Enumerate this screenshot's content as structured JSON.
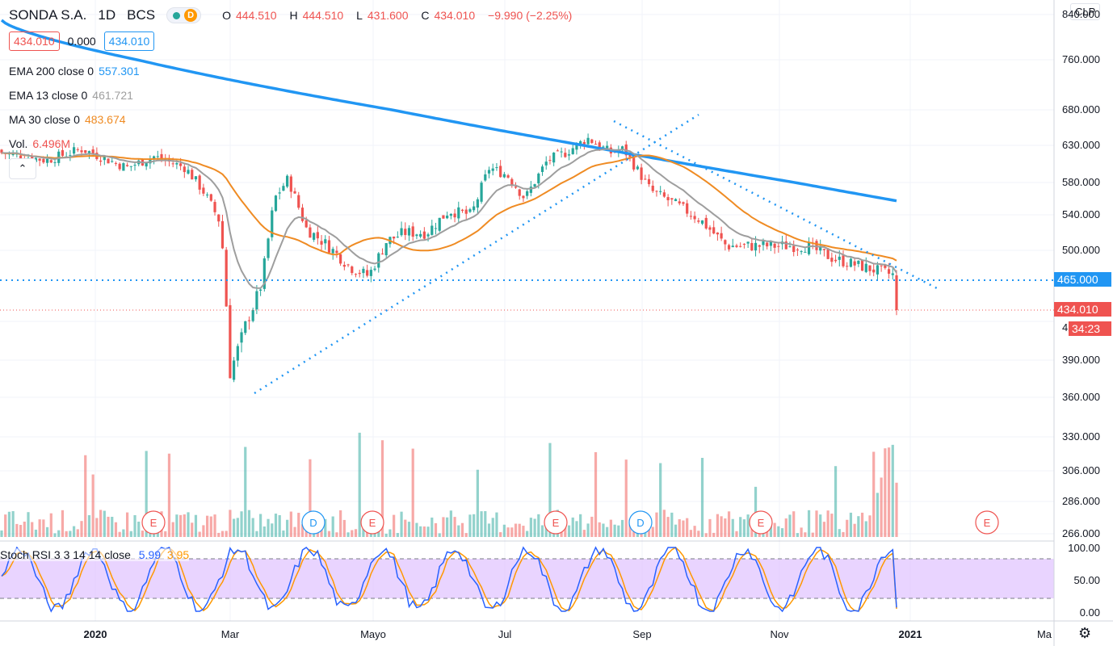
{
  "header": {
    "symbol": "SONDA S.A.",
    "timeframe": "1D",
    "exchange": "BCS",
    "d_badge": "D",
    "ohlc": {
      "o_key": "O",
      "o": "444.510",
      "h_key": "H",
      "h": "444.510",
      "l_key": "L",
      "l": "431.600",
      "c_key": "C",
      "c": "434.010",
      "change": "−9.990 (−2.25%)"
    }
  },
  "price_row": {
    "bid": "434.010",
    "spread": "0.000",
    "ask": "434.010"
  },
  "indicators": {
    "ema200": {
      "label": "EMA 200 close 0",
      "value": "557.301",
      "color": "#2196f3"
    },
    "ema13": {
      "label": "EMA 13 close 0",
      "value": "461.721",
      "color": "#9e9e9e"
    },
    "ma30": {
      "label": "MA 30 close 0",
      "value": "483.674",
      "color": "#ef8b23"
    },
    "vol": {
      "label": "Vol.",
      "value": "6.496M",
      "color": "#ef5350"
    },
    "stoch": {
      "label": "Stoch RSI 3 3 14 14 close",
      "k": "5.99",
      "d": "3.95",
      "k_color": "#2962ff",
      "d_color": "#ff9800"
    }
  },
  "currency": "CLP",
  "collapse_icon": "chevron-up-icon",
  "settings_icon": "gear-icon",
  "price_axis": [
    "840.000",
    "760.000",
    "680.000",
    "630.000",
    "580.000",
    "540.000",
    "500.000",
    "465.000",
    "434.010",
    "420.000",
    "390.000",
    "360.000",
    "330.000",
    "306.000",
    "286.000",
    "266.000"
  ],
  "tags": {
    "level": "465.000",
    "last": "434.010",
    "countdown": "34:23"
  },
  "stoch_axis": [
    "100.00",
    "50.00",
    "0.00"
  ],
  "time_axis": [
    "2020",
    "Mar",
    "Mayo",
    "Jul",
    "Sep",
    "Nov",
    "2021",
    "Ma"
  ],
  "event_markers": [
    "E",
    "D",
    "E",
    "E",
    "D",
    "E",
    "E"
  ],
  "colors": {
    "up": "#26a69a",
    "down": "#ef5350",
    "grid": "#f0f3fa",
    "dotted": "#2196f3",
    "stoch_band": "#e1c5ff"
  },
  "chart_data": {
    "type": "candlestick",
    "title": "SONDA S.A.",
    "x_labels": [
      "2020",
      "Mar",
      "Mayo",
      "Jul",
      "Sep",
      "Nov",
      "2021"
    ],
    "ylim": [
      360,
      840
    ],
    "price_series_approx": [
      {
        "period": "Jan 2020",
        "close": 620
      },
      {
        "period": "Feb 2020",
        "close": 610
      },
      {
        "period": "Mar 2020",
        "close": 380
      },
      {
        "period": "Apr 2020",
        "close": 535
      },
      {
        "period": "May 2020",
        "close": 480
      },
      {
        "period": "Jun 2020",
        "close": 545
      },
      {
        "period": "Jul 2020",
        "close": 600
      },
      {
        "period": "Aug 2020",
        "close": 640
      },
      {
        "period": "Sep 2020",
        "close": 585
      },
      {
        "period": "Oct 2020",
        "close": 530
      },
      {
        "period": "Nov 2020",
        "close": 505
      },
      {
        "period": "Dec 2020",
        "close": 434.01
      }
    ],
    "series": [
      {
        "name": "EMA 200 close 0",
        "last": 557.301
      },
      {
        "name": "EMA 13 close 0",
        "last": 461.721
      },
      {
        "name": "MA 30 close 0",
        "last": 483.674
      }
    ],
    "volume_last": "6.496M",
    "horizontal_level": 465.0,
    "stoch_rsi": {
      "k": 5.99,
      "d": 3.95,
      "upper": 80,
      "lower": 20,
      "ylim": [
        0,
        100
      ]
    }
  }
}
